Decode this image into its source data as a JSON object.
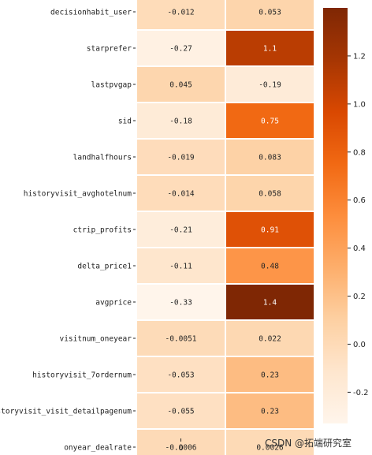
{
  "chart_data": {
    "type": "heatmap",
    "rows": [
      "decisionhabit_user",
      "starprefer",
      "lastpvgap",
      "sid",
      "landhalfhours",
      "historyvisit_avghotelnum",
      "ctrip_profits",
      "delta_price1",
      "avgprice",
      "visitnum_oneyear",
      "historyvisit_7ordernum",
      "historyvisit_visit_detailpagenum",
      "onyear_dealrate"
    ],
    "columns": [
      "0",
      ""
    ],
    "values": [
      [
        -0.012,
        0.053
      ],
      [
        -0.27,
        1.1
      ],
      [
        0.045,
        -0.19
      ],
      [
        -0.18,
        0.75
      ],
      [
        -0.019,
        0.083
      ],
      [
        -0.014,
        0.058
      ],
      [
        -0.21,
        0.91
      ],
      [
        -0.11,
        0.48
      ],
      [
        -0.33,
        1.4
      ],
      [
        -0.0051,
        0.022
      ],
      [
        -0.053,
        0.23
      ],
      [
        -0.055,
        0.23
      ],
      [
        -0.0006,
        0.0026
      ]
    ],
    "labels": [
      [
        "-0.012",
        "0.053"
      ],
      [
        "-0.27",
        "1.1"
      ],
      [
        "0.045",
        "-0.19"
      ],
      [
        "-0.18",
        "0.75"
      ],
      [
        "-0.019",
        "0.083"
      ],
      [
        "-0.014",
        "0.058"
      ],
      [
        "-0.21",
        "0.91"
      ],
      [
        "-0.11",
        "0.48"
      ],
      [
        "-0.33",
        "1.4"
      ],
      [
        "-0.0051",
        "0.022"
      ],
      [
        "-0.053",
        "0.23"
      ],
      [
        "-0.055",
        "0.23"
      ],
      [
        "-0.0006",
        "0.0026"
      ]
    ],
    "colorbar": {
      "min": -0.33,
      "max": 1.4,
      "ticks": [
        -0.2,
        0.0,
        0.2,
        0.4,
        0.6,
        0.8,
        1.0,
        1.2
      ],
      "tick_labels": [
        "-0.2",
        "0.0",
        "0.2",
        "0.4",
        "0.6",
        "0.8",
        "1.0",
        "1.2"
      ],
      "colormap": "Oranges",
      "colors": [
        "#fff5eb",
        "#fee6ce",
        "#fdd0a2",
        "#fdae6b",
        "#fd8d3c",
        "#f16913",
        "#d94801",
        "#a63603",
        "#7f2704"
      ]
    },
    "title": "",
    "xlabel": "",
    "ylabel": "",
    "grid": false
  },
  "watermark": {
    "text": "CSDN @拓端研究室"
  }
}
